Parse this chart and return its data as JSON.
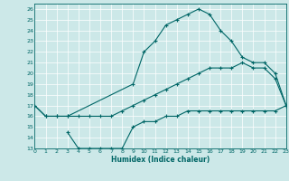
{
  "xlabel": "Humidex (Indice chaleur)",
  "bg_color": "#cce8e8",
  "line_color": "#006666",
  "xlim": [
    0,
    23
  ],
  "ylim": [
    13,
    26.5
  ],
  "yticks": [
    13,
    14,
    15,
    16,
    17,
    18,
    19,
    20,
    21,
    22,
    23,
    24,
    25,
    26
  ],
  "xticks": [
    0,
    1,
    2,
    3,
    4,
    5,
    6,
    7,
    8,
    9,
    10,
    11,
    12,
    13,
    14,
    15,
    16,
    17,
    18,
    19,
    20,
    21,
    22,
    23
  ],
  "line1_x": [
    0,
    1,
    2,
    3,
    9,
    10,
    11,
    12,
    13,
    14,
    15,
    16,
    17,
    18,
    19,
    20,
    21,
    22,
    23
  ],
  "line1_y": [
    17,
    16,
    16,
    16,
    19,
    22,
    23,
    24.5,
    25,
    25.5,
    26,
    25.5,
    24,
    23,
    21.5,
    21,
    21,
    20,
    17
  ],
  "line2_x": [
    0,
    1,
    2,
    3,
    4,
    5,
    6,
    7,
    8,
    9,
    10,
    11,
    12,
    13,
    14,
    15,
    16,
    17,
    18,
    19,
    20,
    21,
    22,
    23
  ],
  "line2_y": [
    17,
    16,
    16,
    16,
    16,
    16,
    16,
    16,
    16.5,
    17,
    17.5,
    18,
    18.5,
    19,
    19.5,
    20,
    20.5,
    20.5,
    20.5,
    21,
    20.5,
    20.5,
    19.5,
    17
  ],
  "line3_x": [
    3,
    4,
    5,
    6,
    7,
    8,
    9,
    10,
    11,
    12,
    13,
    14,
    15,
    16,
    17,
    18,
    19,
    20,
    21,
    22,
    23
  ],
  "line3_y": [
    14.5,
    13,
    13,
    13,
    13,
    13,
    15,
    15.5,
    15.5,
    16,
    16,
    16.5,
    16.5,
    16.5,
    16.5,
    16.5,
    16.5,
    16.5,
    16.5,
    16.5,
    17
  ]
}
